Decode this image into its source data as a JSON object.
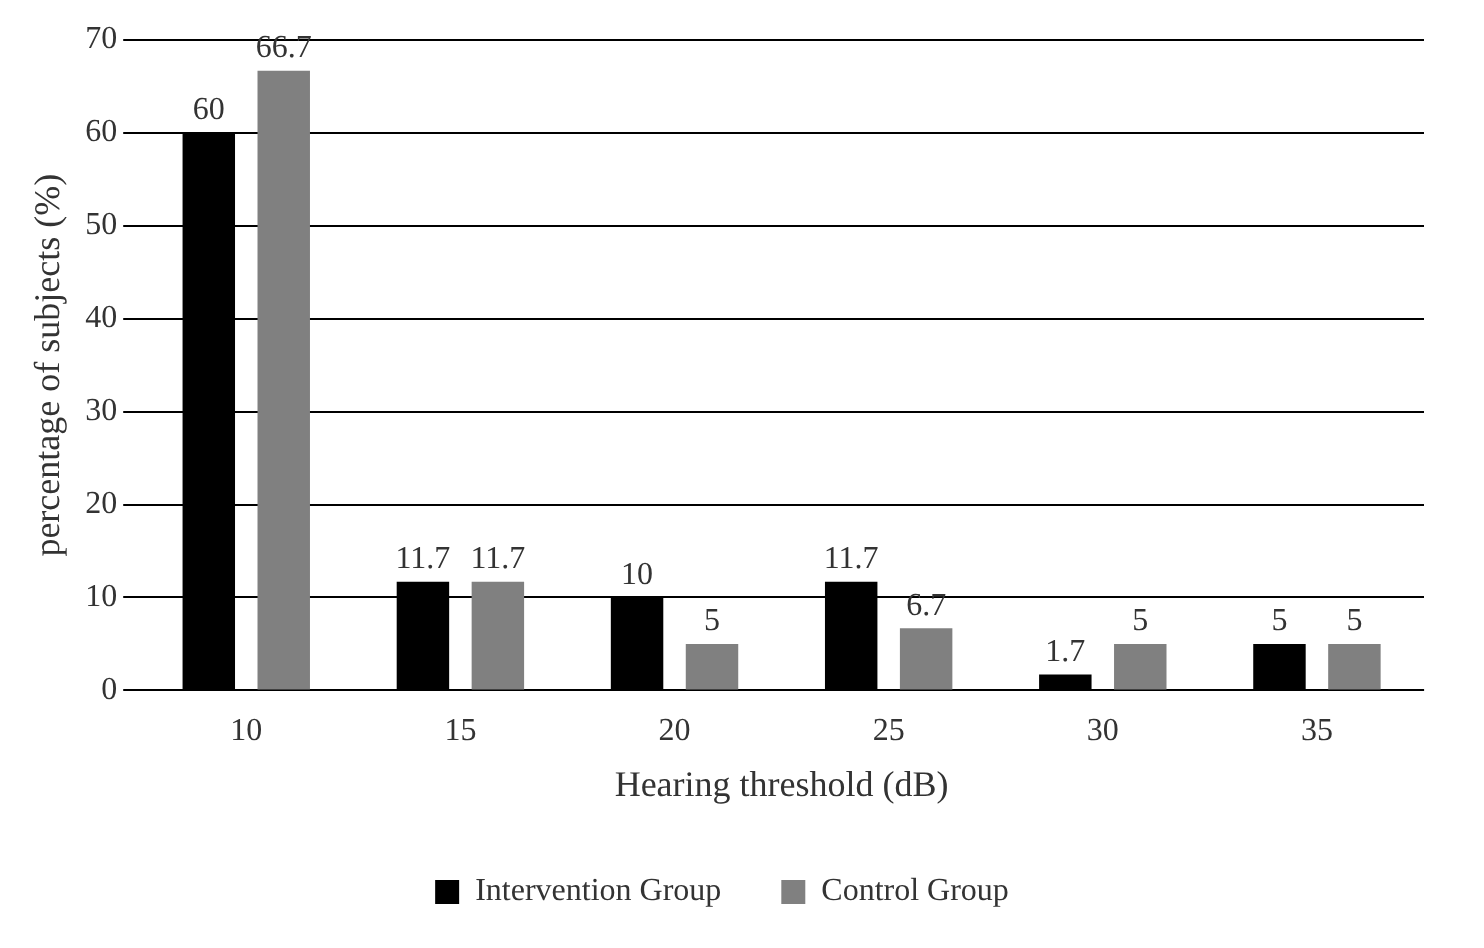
{
  "chart_data": {
    "type": "bar",
    "xlabel": "Hearing threshold (dB)",
    "ylabel": "percentage of subjects (%)",
    "categories": [
      "10",
      "15",
      "20",
      "25",
      "30",
      "35"
    ],
    "series": [
      {
        "name": "Intervention Group",
        "color": "#000000",
        "values": [
          60,
          11.7,
          10,
          11.7,
          1.7,
          5
        ]
      },
      {
        "name": "Control Group",
        "color": "#808080",
        "values": [
          66.7,
          11.7,
          5,
          6.7,
          5,
          5
        ]
      }
    ],
    "ylim": [
      0,
      70
    ],
    "yticks": [
      0,
      10,
      20,
      30,
      40,
      50,
      60,
      70
    ],
    "grid": "y",
    "legend": "bottom",
    "data_labels": true
  }
}
